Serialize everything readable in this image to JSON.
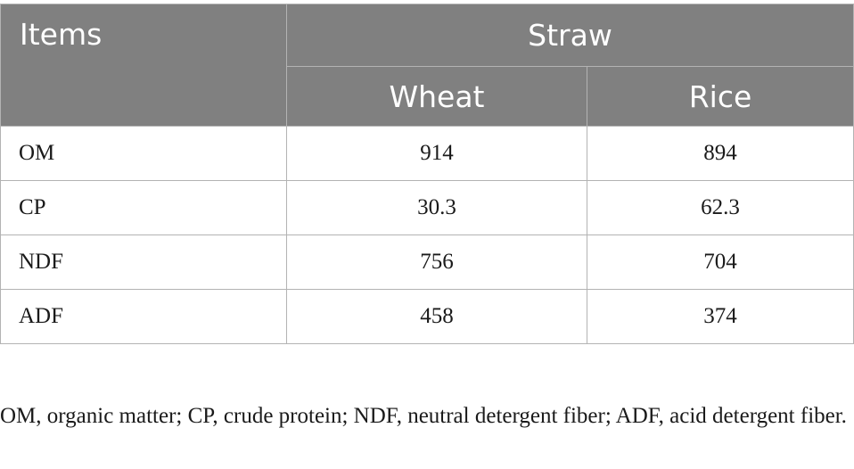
{
  "table": {
    "header": {
      "items_label": "Items",
      "group_label": "Straw",
      "columns": [
        "Wheat",
        "Rice"
      ]
    },
    "rows": [
      {
        "item": "OM",
        "values": [
          "914",
          "894"
        ]
      },
      {
        "item": "CP",
        "values": [
          "30.3",
          "62.3"
        ]
      },
      {
        "item": "NDF",
        "values": [
          "756",
          "704"
        ]
      },
      {
        "item": "ADF",
        "values": [
          "458",
          "374"
        ]
      }
    ]
  },
  "footnote": "OM, organic matter; CP, crude protein; NDF, neutral detergent fiber; ADF, acid detergent fiber.",
  "colors": {
    "header_background": "#808080",
    "header_text": "#ffffff",
    "border": "#b3b3b3",
    "body_text": "#1a1a1a"
  }
}
